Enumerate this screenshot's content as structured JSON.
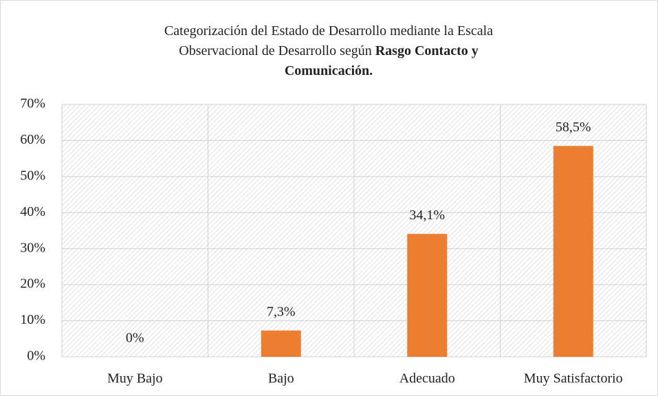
{
  "chart_data": {
    "type": "bar",
    "title": [
      "Categorización del Estado de Desarrollo mediante la Escala",
      "Observacional de Desarrollo según",
      "Rasgo Contacto y",
      "Comunicación."
    ],
    "categories": [
      "Muy Bajo",
      "Bajo",
      "Adecuado",
      "Muy Satisfactorio"
    ],
    "values": [
      0,
      7.3,
      34.1,
      58.5
    ],
    "value_labels": [
      "0%",
      "7,3%",
      "34,1%",
      "58,5%"
    ],
    "color": "#ed7d31",
    "ylim": [
      0,
      70
    ],
    "yticks": [
      {
        "value": 0,
        "label": "0%"
      },
      {
        "value": 10,
        "label": "10%"
      },
      {
        "value": 20,
        "label": "20%"
      },
      {
        "value": 30,
        "label": "30%"
      },
      {
        "value": 40,
        "label": "40%"
      },
      {
        "value": 50,
        "label": "50%"
      },
      {
        "value": 60,
        "label": "60%"
      },
      {
        "value": 70,
        "label": "70%"
      }
    ],
    "grid": true
  }
}
